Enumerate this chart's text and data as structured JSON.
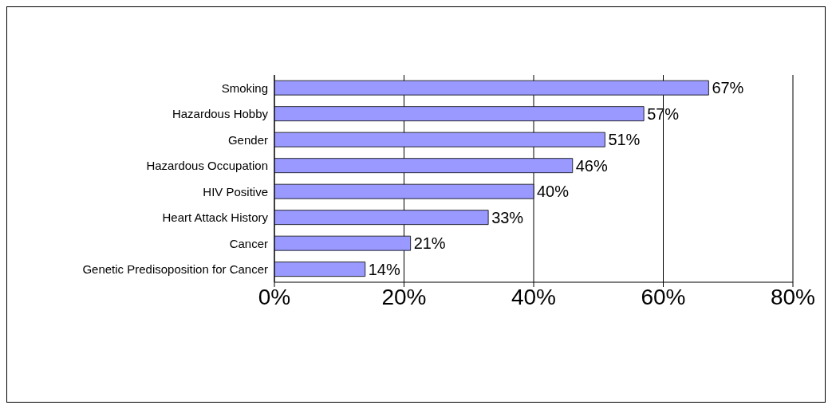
{
  "chart_data": {
    "type": "bar",
    "orientation": "horizontal",
    "categories": [
      "Smoking",
      "Hazardous Hobby",
      "Gender",
      "Hazardous Occupation",
      "HIV Positive",
      "Heart Attack History",
      "Cancer",
      "Genetic Predisoposition for Cancer"
    ],
    "values": [
      67,
      57,
      51,
      46,
      40,
      33,
      21,
      14
    ],
    "value_labels": [
      "67%",
      "57%",
      "51%",
      "46%",
      "40%",
      "33%",
      "21%",
      "14%"
    ],
    "color": "#9999ff",
    "xlim": [
      0,
      80
    ],
    "xticks": [
      {
        "value": 0,
        "label": "0%"
      },
      {
        "value": 20,
        "label": "20%"
      },
      {
        "value": 40,
        "label": "40%"
      },
      {
        "value": 60,
        "label": "60%"
      },
      {
        "value": 80,
        "label": "80%"
      }
    ],
    "grid": "x"
  }
}
